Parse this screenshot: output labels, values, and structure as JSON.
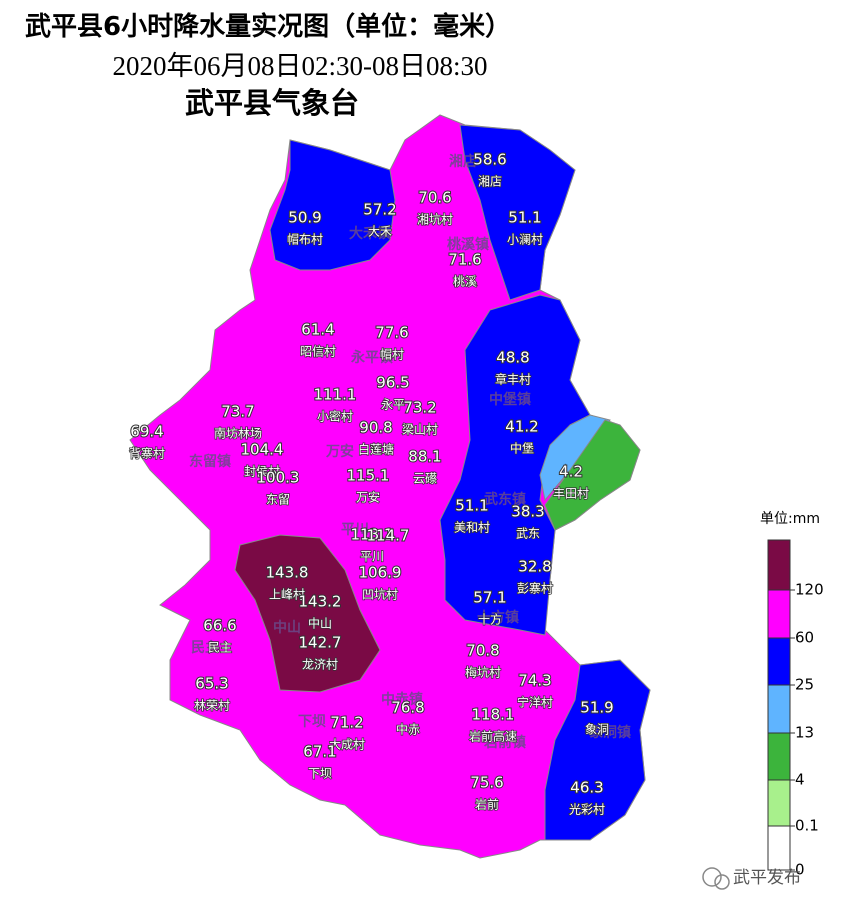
{
  "header": {
    "title": "武平县6小时降水量实况图（单位：毫米）",
    "period": "2020年06月08日02:30-08日08:30",
    "agency": "武平县气象台"
  },
  "stations": [
    {
      "value": 58.6,
      "name": "湘店"
    },
    {
      "value": 70.6,
      "name": "湘坑村"
    },
    {
      "value": 57.2,
      "name": "大禾"
    },
    {
      "value": 50.9,
      "name": "帽布村"
    },
    {
      "value": 51.1,
      "name": "小澜村"
    },
    {
      "value": 71.6,
      "name": "桃溪"
    },
    {
      "value": 61.4,
      "name": "昭信村"
    },
    {
      "value": 77.6,
      "name": "帽村"
    },
    {
      "value": 48.8,
      "name": "章丰村"
    },
    {
      "value": 111.1,
      "name": "小密村"
    },
    {
      "value": 96.5,
      "name": "永平"
    },
    {
      "value": 73.2,
      "name": "梁山村"
    },
    {
      "value": 73.7,
      "name": "南坊林场"
    },
    {
      "value": 41.2,
      "name": "中堡"
    },
    {
      "value": 69.4,
      "name": "背寨村"
    },
    {
      "value": 90.8,
      "name": "白莲塘"
    },
    {
      "value": 104.4,
      "name": "封侯村"
    },
    {
      "value": 88.1,
      "name": "云礤"
    },
    {
      "value": 4.2,
      "name": "丰田村"
    },
    {
      "value": 100.3,
      "name": "东留"
    },
    {
      "value": 115.1,
      "name": "万安"
    },
    {
      "value": 51.1,
      "name": "美和村"
    },
    {
      "value": 38.3,
      "name": "武东"
    },
    {
      "value": 113.1,
      "name": "平川"
    },
    {
      "value": 114.7
    },
    {
      "value": 32.8,
      "name": "彭寨村"
    },
    {
      "value": 143.8,
      "name": "上峰村"
    },
    {
      "value": 106.9,
      "name": "凹坑村"
    },
    {
      "value": 143.2,
      "name": "中山"
    },
    {
      "value": 57.1,
      "name": "十方"
    },
    {
      "value": 66.6,
      "name": "民主"
    },
    {
      "value": 142.7,
      "name": "龙济村"
    },
    {
      "value": 70.8,
      "name": "梅坑村"
    },
    {
      "value": 74.3,
      "name": "宁洋村"
    },
    {
      "value": 65.3,
      "name": "林荣村"
    },
    {
      "value": 51.9,
      "name": "象洞"
    },
    {
      "value": 71.2,
      "name": "大成村"
    },
    {
      "value": 76.8,
      "name": "中赤"
    },
    {
      "value": 118.1,
      "name": "岩前高速"
    },
    {
      "value": 67.1,
      "name": "下坝"
    },
    {
      "value": 46.3,
      "name": "光彩村"
    },
    {
      "value": 75.6,
      "name": "岩前"
    }
  ],
  "towns": [
    "湘店",
    "大禾镇",
    "桃溪镇",
    "永平镇",
    "中堡镇",
    "东留镇",
    "万安",
    "武东镇",
    "平川",
    "中山",
    "民主",
    "十方镇",
    "中赤镇",
    "下坝",
    "岩前镇",
    "象洞镇"
  ],
  "legend": {
    "unit": "单位:mm",
    "levels": [
      120,
      60,
      25,
      13,
      4,
      0.1,
      0
    ],
    "colors": [
      "#7a0a45",
      "#ff00ff",
      "#0000ff",
      "#5fb4ff",
      "#3cb43c",
      "#a8f08c",
      "#ffffff"
    ]
  },
  "watermark": "武平发布"
}
